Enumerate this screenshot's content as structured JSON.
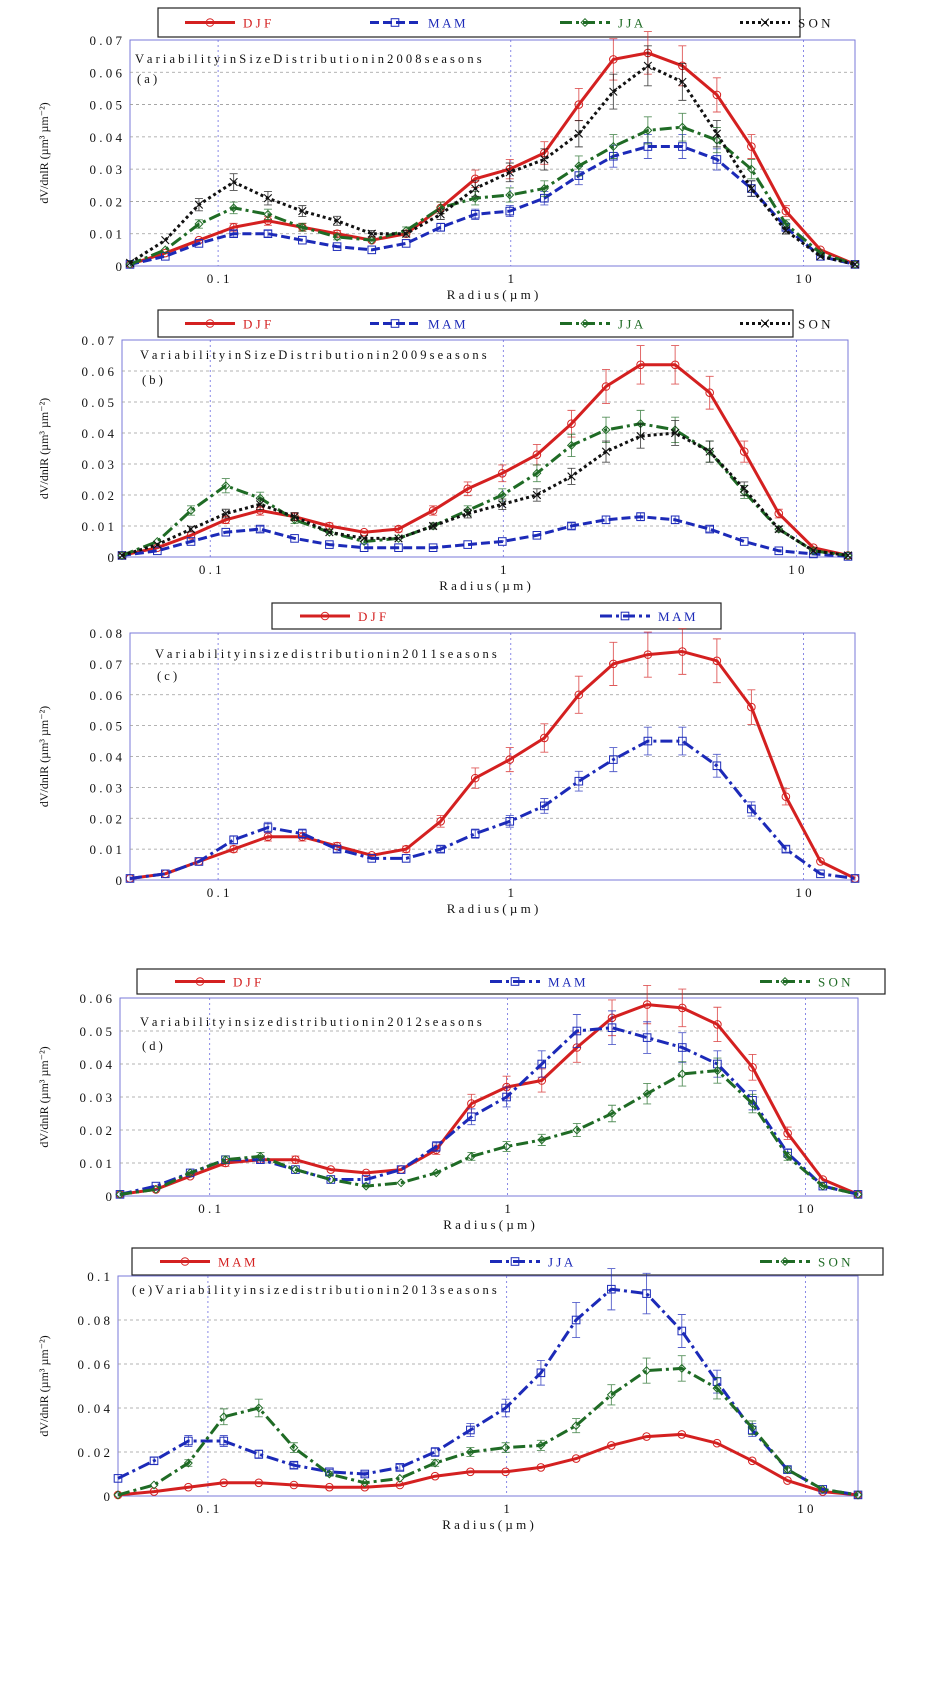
{
  "chart_data": [
    {
      "type": "line",
      "panel": "(a)",
      "title": "Variability in Size Distribution in 2008 seasons",
      "xlabel": "Radius (µm)",
      "ylabel": "dV/dnlR (µm³ µm⁻²)",
      "xscale": "log",
      "xlim": [
        0.05,
        15
      ],
      "ylim": [
        0,
        0.07
      ],
      "yticks": [
        "0",
        "0.01",
        "0.02",
        "0.03",
        "0.04",
        "0.05",
        "0.06",
        "0.07"
      ],
      "xticks": [
        {
          "v": 0.1,
          "label": "0.1"
        },
        {
          "v": 1,
          "label": "1"
        },
        {
          "v": 10,
          "label": "10"
        }
      ],
      "legend_position": "top",
      "grid": true,
      "x": [
        0.05,
        0.066,
        0.086,
        0.113,
        0.148,
        0.194,
        0.255,
        0.335,
        0.439,
        0.576,
        0.756,
        0.992,
        1.302,
        1.708,
        2.241,
        2.94,
        3.857,
        5.06,
        6.638,
        8.708,
        11.43,
        15.0
      ],
      "series": [
        {
          "name": "DJF",
          "color": "#d42020",
          "dash": "",
          "marker": "circle",
          "errors": true,
          "values": [
            0.0005,
            0.004,
            0.008,
            0.012,
            0.014,
            0.012,
            0.01,
            0.008,
            0.01,
            0.018,
            0.027,
            0.03,
            0.035,
            0.05,
            0.064,
            0.066,
            0.062,
            0.053,
            0.037,
            0.017,
            0.005,
            0.0005
          ]
        },
        {
          "name": "MAM",
          "color": "#1c2ab8",
          "dash": "9,4",
          "marker": "square",
          "errors": true,
          "values": [
            0.0005,
            0.003,
            0.007,
            0.01,
            0.01,
            0.008,
            0.006,
            0.005,
            0.007,
            0.012,
            0.016,
            0.017,
            0.021,
            0.028,
            0.034,
            0.037,
            0.037,
            0.033,
            0.024,
            0.012,
            0.003,
            0.0005
          ]
        },
        {
          "name": "JJA",
          "color": "#1f6b25",
          "dash": "12,4,3,4",
          "marker": "diamond",
          "errors": true,
          "values": [
            0.0005,
            0.005,
            0.013,
            0.018,
            0.016,
            0.012,
            0.009,
            0.008,
            0.011,
            0.018,
            0.021,
            0.022,
            0.024,
            0.031,
            0.037,
            0.042,
            0.043,
            0.039,
            0.03,
            0.013,
            0.004,
            0.0005
          ]
        },
        {
          "name": "SON",
          "color": "#111111",
          "dash": "3,3",
          "marker": "x",
          "errors": true,
          "values": [
            0.001,
            0.008,
            0.019,
            0.026,
            0.021,
            0.017,
            0.014,
            0.01,
            0.01,
            0.016,
            0.024,
            0.029,
            0.033,
            0.041,
            0.054,
            0.062,
            0.057,
            0.041,
            0.024,
            0.011,
            0.003,
            0.0005
          ]
        }
      ]
    },
    {
      "type": "line",
      "panel": "(b)",
      "title": "Variability in Size Distribution in 2009 seasons",
      "xlabel": "Radius (µm)",
      "ylabel": "dV/dnlR (µm³ µm⁻²)",
      "xscale": "log",
      "xlim": [
        0.05,
        15
      ],
      "ylim": [
        0,
        0.07
      ],
      "yticks": [
        "0",
        "0.01",
        "0.02",
        "0.03",
        "0.04",
        "0.05",
        "0.06",
        "0.07"
      ],
      "xticks": [
        {
          "v": 0.1,
          "label": "0.1"
        },
        {
          "v": 1,
          "label": "1"
        },
        {
          "v": 10,
          "label": "10"
        }
      ],
      "legend_position": "top",
      "grid": true,
      "x": [
        0.05,
        0.066,
        0.086,
        0.113,
        0.148,
        0.194,
        0.255,
        0.335,
        0.439,
        0.576,
        0.756,
        0.992,
        1.302,
        1.708,
        2.241,
        2.94,
        3.857,
        5.06,
        6.638,
        8.708,
        11.43,
        15.0
      ],
      "series": [
        {
          "name": "DJF",
          "color": "#d42020",
          "dash": "",
          "marker": "circle",
          "errors": true,
          "values": [
            0.0005,
            0.003,
            0.007,
            0.012,
            0.015,
            0.013,
            0.01,
            0.008,
            0.009,
            0.015,
            0.022,
            0.027,
            0.033,
            0.043,
            0.055,
            0.062,
            0.062,
            0.053,
            0.034,
            0.014,
            0.003,
            0.0005
          ]
        },
        {
          "name": "MAM",
          "color": "#1c2ab8",
          "dash": "9,4",
          "marker": "square",
          "errors": true,
          "values": [
            0.0005,
            0.002,
            0.005,
            0.008,
            0.009,
            0.006,
            0.004,
            0.003,
            0.003,
            0.003,
            0.004,
            0.005,
            0.007,
            0.01,
            0.012,
            0.013,
            0.012,
            0.009,
            0.005,
            0.002,
            0.001,
            0.0002
          ]
        },
        {
          "name": "JJA",
          "color": "#1f6b25",
          "dash": "12,4,3,4",
          "marker": "diamond",
          "errors": true,
          "values": [
            0.0005,
            0.005,
            0.015,
            0.023,
            0.019,
            0.012,
            0.008,
            0.005,
            0.006,
            0.01,
            0.015,
            0.02,
            0.027,
            0.036,
            0.041,
            0.043,
            0.041,
            0.034,
            0.021,
            0.009,
            0.002,
            0.0005
          ]
        },
        {
          "name": "SON",
          "color": "#111111",
          "dash": "3,3",
          "marker": "x",
          "errors": true,
          "values": [
            0.0005,
            0.004,
            0.009,
            0.014,
            0.017,
            0.013,
            0.008,
            0.006,
            0.006,
            0.01,
            0.014,
            0.017,
            0.02,
            0.026,
            0.034,
            0.039,
            0.04,
            0.034,
            0.022,
            0.009,
            0.002,
            0.0005
          ]
        }
      ]
    },
    {
      "type": "line",
      "panel": "(c)",
      "title": "Variability in size distribution in 2011 seasons",
      "xlabel": "Radius (µm)",
      "ylabel": "dV/dnlR (µm³ µm⁻²)",
      "xscale": "log",
      "xlim": [
        0.05,
        15
      ],
      "ylim": [
        0,
        0.08
      ],
      "yticks": [
        "0",
        "0.01",
        "0.02",
        "0.03",
        "0.04",
        "0.05",
        "0.06",
        "0.07",
        "0.08"
      ],
      "xticks": [
        {
          "v": 0.1,
          "label": "0.1"
        },
        {
          "v": 1,
          "label": "1"
        },
        {
          "v": 10,
          "label": "10"
        }
      ],
      "legend_position": "top",
      "grid": true,
      "x": [
        0.05,
        0.066,
        0.086,
        0.113,
        0.148,
        0.194,
        0.255,
        0.335,
        0.439,
        0.576,
        0.756,
        0.992,
        1.302,
        1.708,
        2.241,
        2.94,
        3.857,
        5.06,
        6.638,
        8.708,
        11.43,
        15.0
      ],
      "series": [
        {
          "name": "DJF",
          "color": "#d42020",
          "dash": "",
          "marker": "circle",
          "errors": true,
          "values": [
            0.0005,
            0.002,
            0.006,
            0.01,
            0.014,
            0.014,
            0.011,
            0.008,
            0.01,
            0.019,
            0.033,
            0.039,
            0.046,
            0.06,
            0.07,
            0.073,
            0.074,
            0.071,
            0.056,
            0.027,
            0.006,
            0.0005
          ]
        },
        {
          "name": "MAM",
          "color": "#1c2ab8",
          "dash": "12,4,3,4",
          "marker": "square",
          "errors": true,
          "values": [
            0.0005,
            0.002,
            0.006,
            0.013,
            0.017,
            0.015,
            0.01,
            0.007,
            0.007,
            0.01,
            0.015,
            0.019,
            0.024,
            0.032,
            0.039,
            0.045,
            0.045,
            0.037,
            0.023,
            0.01,
            0.002,
            0.0005
          ]
        }
      ]
    },
    {
      "type": "line",
      "panel": "(d)",
      "title": "Variability in size distribution in 2012 seasons",
      "xlabel": "Radius (µm)",
      "ylabel": "dV/dnlR (µm³ µm⁻²)",
      "xscale": "log",
      "xlim": [
        0.05,
        15
      ],
      "ylim": [
        0,
        0.06
      ],
      "yticks": [
        "0",
        "0.01",
        "0.02",
        "0.03",
        "0.04",
        "0.05",
        "0.06"
      ],
      "xticks": [
        {
          "v": 0.1,
          "label": "0.1"
        },
        {
          "v": 1,
          "label": "1"
        },
        {
          "v": 10,
          "label": "10"
        }
      ],
      "legend_position": "top",
      "grid": true,
      "x": [
        0.05,
        0.066,
        0.086,
        0.113,
        0.148,
        0.194,
        0.255,
        0.335,
        0.439,
        0.576,
        0.756,
        0.992,
        1.302,
        1.708,
        2.241,
        2.94,
        3.857,
        5.06,
        6.638,
        8.708,
        11.43,
        15.0
      ],
      "series": [
        {
          "name": "DJF",
          "color": "#d42020",
          "dash": "",
          "marker": "circle",
          "errors": true,
          "values": [
            0.0005,
            0.002,
            0.006,
            0.01,
            0.011,
            0.011,
            0.008,
            0.007,
            0.008,
            0.014,
            0.028,
            0.033,
            0.035,
            0.045,
            0.054,
            0.058,
            0.057,
            0.052,
            0.039,
            0.019,
            0.005,
            0.0005
          ]
        },
        {
          "name": "MAM",
          "color": "#1c2ab8",
          "dash": "12,4,3,4",
          "marker": "square",
          "errors": true,
          "values": [
            0.0005,
            0.003,
            0.007,
            0.011,
            0.011,
            0.008,
            0.005,
            0.005,
            0.008,
            0.015,
            0.024,
            0.03,
            0.04,
            0.05,
            0.051,
            0.048,
            0.045,
            0.04,
            0.029,
            0.013,
            0.003,
            0.0005
          ]
        },
        {
          "name": "SON",
          "color": "#1f6b25",
          "dash": "12,4,3,4",
          "marker": "diamond",
          "errors": true,
          "values": [
            0.0005,
            0.002,
            0.007,
            0.011,
            0.012,
            0.008,
            0.005,
            0.003,
            0.004,
            0.007,
            0.012,
            0.015,
            0.017,
            0.02,
            0.025,
            0.031,
            0.037,
            0.038,
            0.028,
            0.012,
            0.003,
            0.0005
          ]
        }
      ]
    },
    {
      "type": "line",
      "panel": "(e)",
      "title": "Variability in size distribution in 2013 seasons",
      "xlabel": "Radius (µm)",
      "ylabel": "dV/dnlR (µm³ µm⁻²)",
      "xscale": "log",
      "xlim": [
        0.05,
        15
      ],
      "ylim": [
        0,
        0.1
      ],
      "yticks": [
        "0",
        "0.02",
        "0.04",
        "0.06",
        "0.08",
        "0.1"
      ],
      "xticks": [
        {
          "v": 0.1,
          "label": "0.1"
        },
        {
          "v": 1,
          "label": "1"
        },
        {
          "v": 10,
          "label": "10"
        }
      ],
      "legend_position": "top",
      "grid": true,
      "x": [
        0.05,
        0.066,
        0.086,
        0.113,
        0.148,
        0.194,
        0.255,
        0.335,
        0.439,
        0.576,
        0.756,
        0.992,
        1.302,
        1.708,
        2.241,
        2.94,
        3.857,
        5.06,
        6.638,
        8.708,
        11.43,
        15.0
      ],
      "series": [
        {
          "name": "MAM",
          "color": "#d42020",
          "dash": "",
          "marker": "circle",
          "errors": false,
          "values": [
            0.0005,
            0.002,
            0.004,
            0.006,
            0.006,
            0.005,
            0.004,
            0.004,
            0.005,
            0.009,
            0.011,
            0.011,
            0.013,
            0.017,
            0.023,
            0.027,
            0.028,
            0.024,
            0.016,
            0.007,
            0.002,
            0.0005
          ]
        },
        {
          "name": "JJA",
          "color": "#1c2ab8",
          "dash": "12,4,3,4",
          "marker": "square",
          "errors": true,
          "values": [
            0.008,
            0.016,
            0.025,
            0.025,
            0.019,
            0.014,
            0.011,
            0.01,
            0.013,
            0.02,
            0.03,
            0.04,
            0.056,
            0.08,
            0.094,
            0.092,
            0.075,
            0.052,
            0.03,
            0.012,
            0.003,
            0.0005
          ]
        },
        {
          "name": "SON",
          "color": "#1f6b25",
          "dash": "12,4,3,4",
          "marker": "diamond",
          "errors": true,
          "values": [
            0.0005,
            0.005,
            0.015,
            0.036,
            0.04,
            0.022,
            0.01,
            0.006,
            0.008,
            0.015,
            0.02,
            0.022,
            0.023,
            0.032,
            0.046,
            0.057,
            0.058,
            0.049,
            0.031,
            0.012,
            0.003,
            0.0005
          ]
        }
      ]
    }
  ]
}
